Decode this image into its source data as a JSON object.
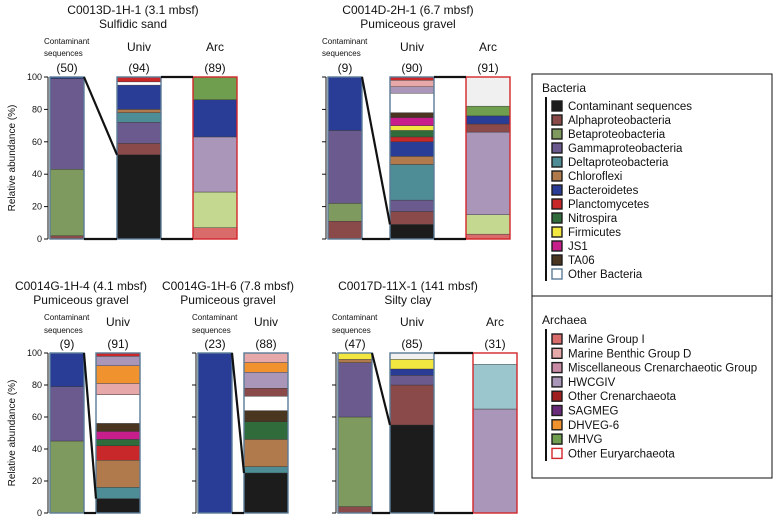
{
  "colors": {
    "contaminant": "#1c1c1c",
    "alphaproteobacteria": "#8a4a4a",
    "betaproteobacteria": "#7f9a5e",
    "gammaproteobacteria": "#6b5a8e",
    "deltaproteobacteria": "#4e8c96",
    "chloroflexi": "#b07a4c",
    "bacteroidetes": "#2a3d96",
    "planctomycetes": "#c8282a",
    "nitrospira": "#2f6b3b",
    "firmicutes": "#f2e640",
    "js1": "#c81e8c",
    "ta06": "#4a3520",
    "other_bacteria": "#ffffff",
    "marine_group_i": "#d96b6b",
    "mbgd": "#e6a8a8",
    "mcg": "#c98aa6",
    "hwcgiv": "#a996b8",
    "other_crenarchaeota": "#a01f1f",
    "sagmeg": "#6a2a7a",
    "dhveg6": "#f0922e",
    "mhvg": "#6f9e4e",
    "other_euryarchaeota": "#ffffff",
    "lightgreen": "#c4d890",
    "lightblue": "#9cc6ce",
    "lightgray": "#f0f0f0"
  },
  "axis": {
    "ylabel": "Relative abundance (%)",
    "ticks": [
      "0",
      "20",
      "40",
      "60",
      "80",
      "100"
    ],
    "ylim": [
      0,
      100
    ]
  },
  "legend": {
    "bacteria_title": "Bacteria",
    "archaea_title": "Archaea",
    "bacteria": [
      {
        "label": "Contaminant sequences",
        "color": "#1c1c1c",
        "border": "#1c1c1c"
      },
      {
        "label": "Alphaproteobacteria",
        "color": "#8a4a4a",
        "border": "#1c1c1c"
      },
      {
        "label": "Betaproteobacteria",
        "color": "#7f9a5e",
        "border": "#1c1c1c"
      },
      {
        "label": "Gammaproteobacteria",
        "color": "#6b5a8e",
        "border": "#1c1c1c"
      },
      {
        "label": "Deltaproteobacteria",
        "color": "#4e8c96",
        "border": "#1c1c1c"
      },
      {
        "label": "Chloroflexi",
        "color": "#b07a4c",
        "border": "#1c1c1c"
      },
      {
        "label": "Bacteroidetes",
        "color": "#2a3d96",
        "border": "#1c1c1c"
      },
      {
        "label": "Planctomycetes",
        "color": "#c8282a",
        "border": "#1c1c1c"
      },
      {
        "label": "Nitrospira",
        "color": "#2f6b3b",
        "border": "#1c1c1c"
      },
      {
        "label": "Firmicutes",
        "color": "#f2e640",
        "border": "#1c1c1c"
      },
      {
        "label": "JS1",
        "color": "#c81e8c",
        "border": "#1c1c1c"
      },
      {
        "label": "TA06",
        "color": "#4a3520",
        "border": "#1c1c1c"
      },
      {
        "label": "Other Bacteria",
        "color": "#ffffff",
        "border": "#5a7b96"
      }
    ],
    "archaea": [
      {
        "label": "Marine Group I",
        "color": "#d96b6b",
        "border": "#1c1c1c"
      },
      {
        "label": "Marine Benthic Group D",
        "color": "#e6a8a8",
        "border": "#1c1c1c"
      },
      {
        "label": "Miscellaneous Crenarchaeotic Group",
        "color": "#c98aa6",
        "border": "#1c1c1c"
      },
      {
        "label": "HWCGIV",
        "color": "#a996b8",
        "border": "#1c1c1c"
      },
      {
        "label": "Other Crenarchaeota",
        "color": "#a01f1f",
        "border": "#1c1c1c"
      },
      {
        "label": "SAGMEG",
        "color": "#6a2a7a",
        "border": "#1c1c1c"
      },
      {
        "label": "DHVEG-6",
        "color": "#f0922e",
        "border": "#1c1c1c"
      },
      {
        "label": "MHVG",
        "color": "#6f9e4e",
        "border": "#1c1c1c"
      },
      {
        "label": "Other Euryarchaeota",
        "color": "#ffffff",
        "border": "#d2262a"
      }
    ]
  },
  "chart_data": [
    {
      "type": "bar",
      "title": "C0013D-1H-1 (3.1 mbsf)",
      "subtitle": "Sulfidic sand",
      "bars": [
        {
          "label": "Contaminant sequences",
          "count": "(50)",
          "segments": [
            {
              "v": 2,
              "c": "#8a4a4a"
            },
            {
              "v": 41,
              "c": "#7f9a5e"
            },
            {
              "v": 56,
              "c": "#6b5a8e"
            },
            {
              "v": 1,
              "c": "#2a3d96"
            }
          ]
        },
        {
          "label": "Univ",
          "count": "(94)",
          "segments": [
            {
              "v": 52,
              "c": "#1c1c1c"
            },
            {
              "v": 7,
              "c": "#8a4a4a"
            },
            {
              "v": 13,
              "c": "#6b5a8e"
            },
            {
              "v": 6,
              "c": "#4e8c96"
            },
            {
              "v": 2,
              "c": "#b07a4c"
            },
            {
              "v": 15,
              "c": "#2a3d96"
            },
            {
              "v": 2,
              "c": "#ffffff"
            },
            {
              "v": 3,
              "c": "#c8282a"
            }
          ]
        },
        {
          "label": "Arc",
          "count": "(89)",
          "segments": [
            {
              "v": 7,
              "c": "#d96b6b"
            },
            {
              "v": 22,
              "c": "#c4d890"
            },
            {
              "v": 34,
              "c": "#a996b8"
            },
            {
              "v": 23,
              "c": "#2a3d96"
            },
            {
              "v": 14,
              "c": "#6f9e4e"
            }
          ]
        }
      ]
    },
    {
      "type": "bar",
      "title": "C0014D-2H-1 (6.7 mbsf)",
      "subtitle": "Pumiceous gravel",
      "bars": [
        {
          "label": "Contaminant sequences",
          "count": "(9)",
          "segments": [
            {
              "v": 11,
              "c": "#8a4a4a"
            },
            {
              "v": 11,
              "c": "#7f9a5e"
            },
            {
              "v": 45,
              "c": "#6b5a8e"
            },
            {
              "v": 33,
              "c": "#2a3d96"
            }
          ]
        },
        {
          "label": "Univ",
          "count": "(90)",
          "segments": [
            {
              "v": 9,
              "c": "#1c1c1c"
            },
            {
              "v": 8,
              "c": "#8a4a4a"
            },
            {
              "v": 7,
              "c": "#6b5a8e"
            },
            {
              "v": 22,
              "c": "#4e8c96"
            },
            {
              "v": 5,
              "c": "#b07a4c"
            },
            {
              "v": 9,
              "c": "#2a3d96"
            },
            {
              "v": 3,
              "c": "#c8282a"
            },
            {
              "v": 4,
              "c": "#2f6b3b"
            },
            {
              "v": 3,
              "c": "#f2e640"
            },
            {
              "v": 5,
              "c": "#c81e8c"
            },
            {
              "v": 3,
              "c": "#4a3520"
            },
            {
              "v": 12,
              "c": "#ffffff"
            },
            {
              "v": 4,
              "c": "#a996b8"
            },
            {
              "v": 4,
              "c": "#e6a8a8"
            },
            {
              "v": 2,
              "c": "#c8282a"
            }
          ]
        },
        {
          "label": "Arc",
          "count": "(91)",
          "segments": [
            {
              "v": 3,
              "c": "#d96b6b"
            },
            {
              "v": 12,
              "c": "#c4d890"
            },
            {
              "v": 51,
              "c": "#a996b8"
            },
            {
              "v": 5,
              "c": "#8a4a4a"
            },
            {
              "v": 5,
              "c": "#2a3d96"
            },
            {
              "v": 6,
              "c": "#6f9e4e"
            },
            {
              "v": 18,
              "c": "#f0f0f0"
            }
          ]
        }
      ]
    },
    {
      "type": "bar",
      "title": "C0014G-1H-4 (4.1 mbsf)",
      "subtitle": "Pumiceous gravel",
      "bars": [
        {
          "label": "Contaminant sequences",
          "count": "(9)",
          "segments": [
            {
              "v": 45,
              "c": "#7f9a5e"
            },
            {
              "v": 34,
              "c": "#6b5a8e"
            },
            {
              "v": 21,
              "c": "#2a3d96"
            }
          ]
        },
        {
          "label": "Univ",
          "count": "(91)",
          "segments": [
            {
              "v": 9,
              "c": "#1c1c1c"
            },
            {
              "v": 7,
              "c": "#4e8c96"
            },
            {
              "v": 17,
              "c": "#b07a4c"
            },
            {
              "v": 9,
              "c": "#c8282a"
            },
            {
              "v": 4,
              "c": "#2f6b3b"
            },
            {
              "v": 5,
              "c": "#c81e8c"
            },
            {
              "v": 5,
              "c": "#4a3520"
            },
            {
              "v": 18,
              "c": "#ffffff"
            },
            {
              "v": 7,
              "c": "#e6a8a8"
            },
            {
              "v": 11,
              "c": "#f0922e"
            },
            {
              "v": 6,
              "c": "#a996b8"
            },
            {
              "v": 2,
              "c": "#c8282a"
            }
          ]
        }
      ]
    },
    {
      "type": "bar",
      "title": "C0014G-1H-6 (7.8 mbsf)",
      "subtitle": "Pumiceous gravel",
      "bars": [
        {
          "label": "Contaminant sequences",
          "count": "(23)",
          "segments": [
            {
              "v": 100,
              "c": "#2a3d96"
            }
          ]
        },
        {
          "label": "Univ",
          "count": "(88)",
          "segments": [
            {
              "v": 25,
              "c": "#1c1c1c"
            },
            {
              "v": 4,
              "c": "#4e8c96"
            },
            {
              "v": 17,
              "c": "#b07a4c"
            },
            {
              "v": 11,
              "c": "#2f6b3b"
            },
            {
              "v": 7,
              "c": "#4a3520"
            },
            {
              "v": 9,
              "c": "#ffffff"
            },
            {
              "v": 5,
              "c": "#8a4a4a"
            },
            {
              "v": 10,
              "c": "#a996b8"
            },
            {
              "v": 6,
              "c": "#f0922e"
            },
            {
              "v": 6,
              "c": "#e6a8a8"
            }
          ]
        }
      ]
    },
    {
      "type": "bar",
      "title": "C0017D-11X-1 (141 mbsf)",
      "subtitle": "Silty clay",
      "bars": [
        {
          "label": "Contaminant sequences",
          "count": "(47)",
          "segments": [
            {
              "v": 4,
              "c": "#8a4a4a"
            },
            {
              "v": 56,
              "c": "#7f9a5e"
            },
            {
              "v": 34,
              "c": "#6b5a8e"
            },
            {
              "v": 2,
              "c": "#b07a4c"
            },
            {
              "v": 4,
              "c": "#f2e640"
            }
          ]
        },
        {
          "label": "Univ",
          "count": "(85)",
          "segments": [
            {
              "v": 55,
              "c": "#1c1c1c"
            },
            {
              "v": 25,
              "c": "#8a4a4a"
            },
            {
              "v": 6,
              "c": "#6b5a8e"
            },
            {
              "v": 4,
              "c": "#2a3d96"
            },
            {
              "v": 6,
              "c": "#f2e640"
            },
            {
              "v": 4,
              "c": "#f0f0f0"
            }
          ]
        },
        {
          "label": "Arc",
          "count": "(31)",
          "segments": [
            {
              "v": 65,
              "c": "#a996b8"
            },
            {
              "v": 28,
              "c": "#9cc6ce"
            },
            {
              "v": 7,
              "c": "#ffffff"
            }
          ]
        }
      ]
    }
  ]
}
